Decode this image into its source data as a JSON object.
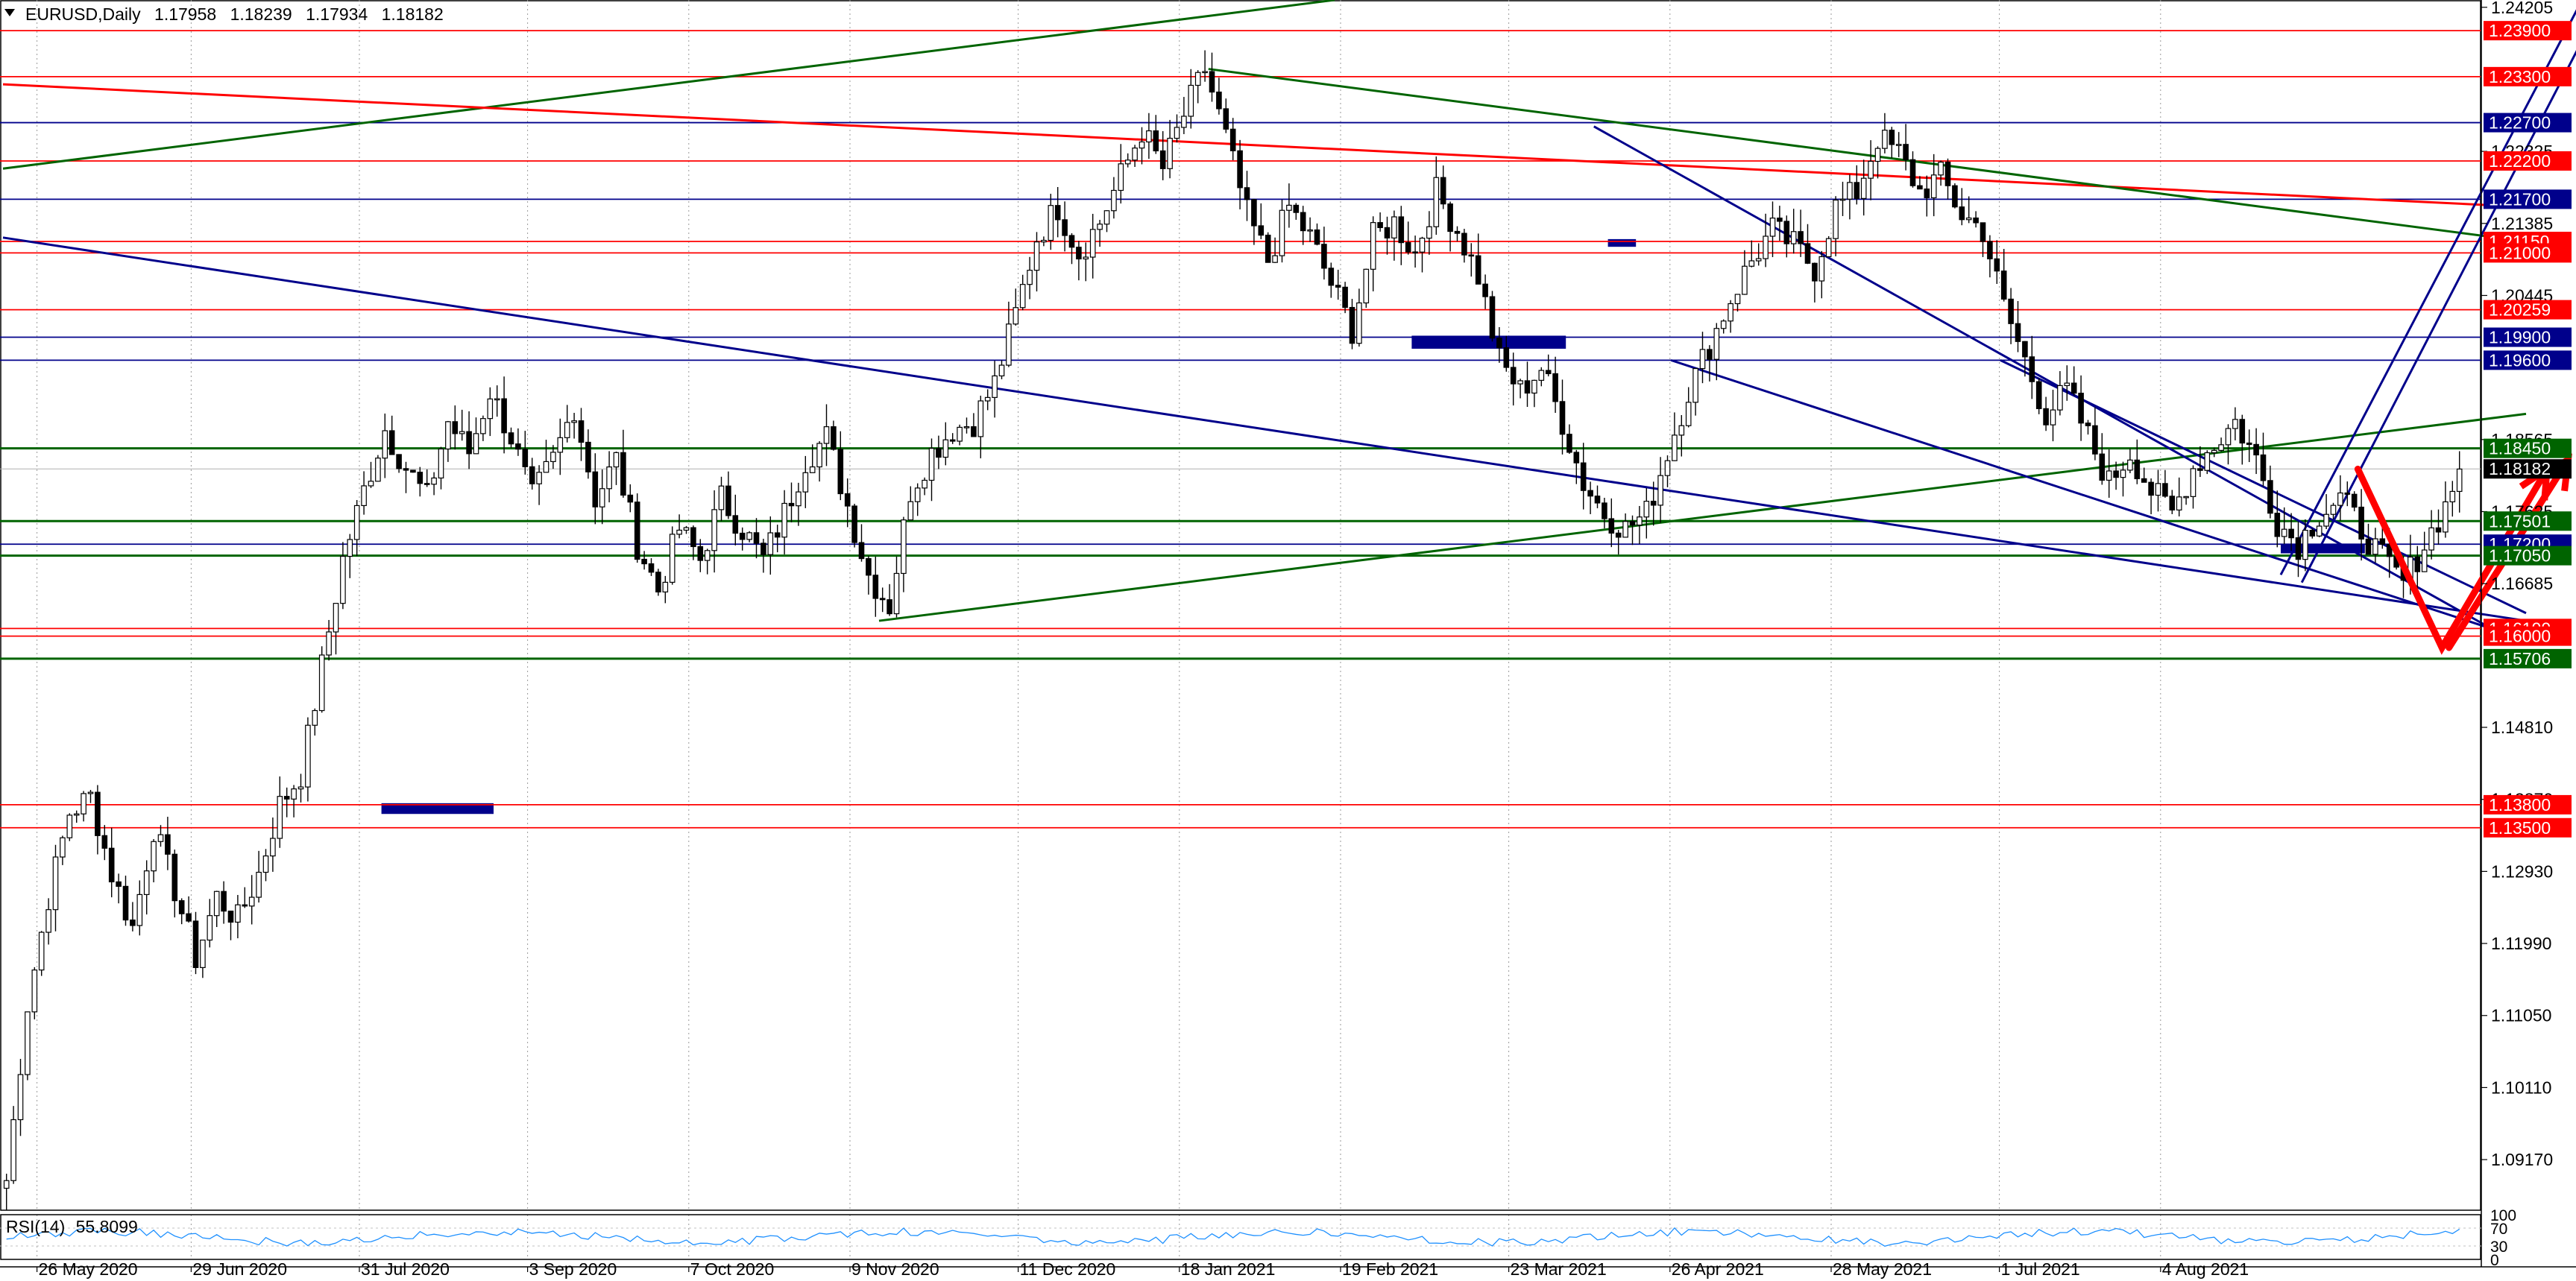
{
  "header": {
    "symbol": "EURUSD,Daily",
    "open": "1.17958",
    "high": "1.18239",
    "low": "1.17934",
    "close": "1.18182"
  },
  "rsi": {
    "label": "RSI(14)",
    "value": "55.8099",
    "scale_labels": [
      "100",
      "70",
      "30",
      "0"
    ],
    "line_color": "#1e90ff"
  },
  "colors": {
    "up_candle": "#ffffff",
    "down_candle": "#000000",
    "red_level": "#ff0000",
    "blue_level": "#00008b",
    "green_level": "#006400",
    "arrow": "#ff0000",
    "current_price_bg": "#000000"
  },
  "chart_data": {
    "type": "candlestick",
    "ylim": [
      1.085,
      1.243
    ],
    "x": [
      "26 May 2020",
      "29 Jun 2020",
      "31 Jul 2020",
      "3 Sep 2020",
      "7 Oct 2020",
      "9 Nov 2020",
      "11 Dec 2020",
      "18 Jan 2021",
      "19 Feb 2021",
      "23 Mar 2021",
      "26 Apr 2021",
      "28 May 2021",
      "1 Jul 2021",
      "4 Aug 2021"
    ],
    "price_scale_ticks": [
      "1.24205",
      "1.22325",
      "1.21385",
      "1.20445",
      "1.18565",
      "1.17625",
      "1.16685",
      "1.14810",
      "1.13870",
      "1.12930",
      "1.11990",
      "1.11050",
      "1.10110",
      "1.09170"
    ],
    "price_path": [
      [
        0,
        1.089
      ],
      [
        3,
        1.112
      ],
      [
        6,
        1.126
      ],
      [
        9,
        1.137
      ],
      [
        12,
        1.139
      ],
      [
        15,
        1.129
      ],
      [
        18,
        1.122
      ],
      [
        21,
        1.135
      ],
      [
        24,
        1.127
      ],
      [
        27,
        1.118
      ],
      [
        30,
        1.126
      ],
      [
        33,
        1.123
      ],
      [
        36,
        1.129
      ],
      [
        39,
        1.138
      ],
      [
        42,
        1.142
      ],
      [
        45,
        1.156
      ],
      [
        48,
        1.17
      ],
      [
        51,
        1.179
      ],
      [
        54,
        1.187
      ],
      [
        57,
        1.182
      ],
      [
        60,
        1.178
      ],
      [
        63,
        1.188
      ],
      [
        66,
        1.184
      ],
      [
        69,
        1.192
      ],
      [
        72,
        1.186
      ],
      [
        75,
        1.178
      ],
      [
        78,
        1.183
      ],
      [
        81,
        1.19
      ],
      [
        84,
        1.178
      ],
      [
        87,
        1.183
      ],
      [
        90,
        1.172
      ],
      [
        93,
        1.166
      ],
      [
        96,
        1.174
      ],
      [
        99,
        1.17
      ],
      [
        102,
        1.178
      ],
      [
        105,
        1.174
      ],
      [
        108,
        1.17
      ],
      [
        111,
        1.176
      ],
      [
        114,
        1.183
      ],
      [
        117,
        1.186
      ],
      [
        120,
        1.177
      ],
      [
        123,
        1.168
      ],
      [
        126,
        1.164
      ],
      [
        129,
        1.179
      ],
      [
        132,
        1.184
      ],
      [
        135,
        1.187
      ],
      [
        138,
        1.188
      ],
      [
        141,
        1.193
      ],
      [
        144,
        1.202
      ],
      [
        147,
        1.212
      ],
      [
        150,
        1.216
      ],
      [
        153,
        1.21
      ],
      [
        156,
        1.214
      ],
      [
        159,
        1.22
      ],
      [
        162,
        1.226
      ],
      [
        165,
        1.221
      ],
      [
        168,
        1.228
      ],
      [
        171,
        1.234
      ],
      [
        174,
        1.225
      ],
      [
        177,
        1.215
      ],
      [
        180,
        1.209
      ],
      [
        183,
        1.216
      ],
      [
        186,
        1.212
      ],
      [
        189,
        1.206
      ],
      [
        192,
        1.2
      ],
      [
        195,
        1.212
      ],
      [
        198,
        1.214
      ],
      [
        201,
        1.21
      ],
      [
        204,
        1.218
      ],
      [
        207,
        1.213
      ],
      [
        210,
        1.207
      ],
      [
        213,
        1.196
      ],
      [
        216,
        1.192
      ],
      [
        219,
        1.195
      ],
      [
        222,
        1.188
      ],
      [
        225,
        1.18
      ],
      [
        228,
        1.176
      ],
      [
        231,
        1.174
      ],
      [
        234,
        1.176
      ],
      [
        237,
        1.184
      ],
      [
        240,
        1.192
      ],
      [
        243,
        1.198
      ],
      [
        246,
        1.204
      ],
      [
        249,
        1.209
      ],
      [
        252,
        1.213
      ],
      [
        255,
        1.211
      ],
      [
        258,
        1.208
      ],
      [
        261,
        1.216
      ],
      [
        264,
        1.218
      ],
      [
        267,
        1.225
      ],
      [
        270,
        1.223
      ],
      [
        273,
        1.218
      ],
      [
        276,
        1.22
      ],
      [
        279,
        1.215
      ],
      [
        282,
        1.213
      ],
      [
        285,
        1.203
      ],
      [
        288,
        1.196
      ],
      [
        291,
        1.189
      ],
      [
        294,
        1.192
      ],
      [
        297,
        1.186
      ],
      [
        300,
        1.18
      ],
      [
        303,
        1.184
      ],
      [
        306,
        1.179
      ],
      [
        309,
        1.176
      ],
      [
        312,
        1.182
      ],
      [
        315,
        1.185
      ],
      [
        318,
        1.188
      ],
      [
        321,
        1.183
      ],
      [
        324,
        1.175
      ],
      [
        327,
        1.172
      ],
      [
        330,
        1.176
      ],
      [
        333,
        1.178
      ],
      [
        336,
        1.174
      ],
      [
        339,
        1.17
      ],
      [
        342,
        1.167
      ],
      [
        345,
        1.172
      ],
      [
        348,
        1.177
      ],
      [
        350,
        1.1818
      ]
    ],
    "levels": [
      {
        "price": 1.239,
        "label": "1.23900",
        "color": "red"
      },
      {
        "price": 1.233,
        "label": "1.23300",
        "color": "red"
      },
      {
        "price": 1.227,
        "label": "1.22700",
        "color": "blue"
      },
      {
        "price": 1.222,
        "label": "1.22200",
        "color": "red"
      },
      {
        "price": 1.217,
        "label": "1.21700",
        "color": "blue"
      },
      {
        "price": 1.2115,
        "label": "1.21150",
        "color": "red"
      },
      {
        "price": 1.21,
        "label": "1.21000",
        "color": "red"
      },
      {
        "price": 1.20259,
        "label": "1.20259",
        "color": "red"
      },
      {
        "price": 1.199,
        "label": "1.19900",
        "color": "blue"
      },
      {
        "price": 1.196,
        "label": "1.19600",
        "color": "blue"
      },
      {
        "price": 1.1845,
        "label": "1.18450",
        "color": "green"
      },
      {
        "price": 1.17501,
        "label": "1.17501",
        "color": "green"
      },
      {
        "price": 1.172,
        "label": "1.17200",
        "color": "blue"
      },
      {
        "price": 1.1705,
        "label": "1.17050",
        "color": "green"
      },
      {
        "price": 1.161,
        "label": "1.16100",
        "color": "red"
      },
      {
        "price": 1.16,
        "label": "1.16000",
        "color": "red"
      },
      {
        "price": 1.15706,
        "label": "1.15706",
        "color": "green"
      },
      {
        "price": 1.138,
        "label": "1.13800",
        "color": "red"
      },
      {
        "price": 1.135,
        "label": "1.13500",
        "color": "red"
      }
    ],
    "current_price": {
      "price": 1.18182,
      "label": "1.18182"
    },
    "trendlines": [
      {
        "from": [
          0,
          1.221
        ],
        "to": [
          190,
          1.243
        ],
        "color": "green"
      },
      {
        "from": [
          125,
          1.162
        ],
        "to": [
          360,
          1.189
        ],
        "color": "green"
      },
      {
        "from": [
          0,
          1.232
        ],
        "to": [
          360,
          1.216
        ],
        "color": "red"
      },
      {
        "from": [
          172,
          1.234
        ],
        "to": [
          360,
          1.2115
        ],
        "color": "green"
      },
      {
        "from": [
          0,
          1.212
        ],
        "to": [
          360,
          1.162
        ],
        "color": "blue"
      },
      {
        "from": [
          285,
          1.196
        ],
        "to": [
          360,
          1.163
        ],
        "color": "blue"
      },
      {
        "from": [
          227,
          1.2265
        ],
        "to": [
          357,
          1.16
        ],
        "color": "blue"
      },
      {
        "from": [
          238,
          1.196
        ],
        "to": [
          360,
          1.1595
        ],
        "color": "blue"
      },
      {
        "from": [
          325,
          1.168
        ],
        "to": [
          368,
          1.243
        ],
        "color": "blue"
      },
      {
        "from": [
          328,
          1.167
        ],
        "to": [
          371,
          1.243
        ],
        "color": "blue"
      }
    ],
    "zones": [
      {
        "x0": 54,
        "x1": 70,
        "y0": 1.1368,
        "y1": 1.1382,
        "color": "blue"
      },
      {
        "x0": 201,
        "x1": 223,
        "y0": 1.1975,
        "y1": 1.1992,
        "color": "blue"
      },
      {
        "x0": 229,
        "x1": 233,
        "y0": 1.2108,
        "y1": 1.2118,
        "color": "blue"
      },
      {
        "x0": 325,
        "x1": 337,
        "y0": 1.1708,
        "y1": 1.172,
        "color": "blue"
      }
    ],
    "projection_arrows": [
      {
        "points": [
          [
            336,
            1.1818
          ],
          [
            348,
            1.1585
          ],
          [
            363,
            1.1818
          ]
        ]
      },
      {
        "points": [
          [
            349,
            1.1585
          ],
          [
            366,
            1.183
          ]
        ]
      }
    ]
  }
}
